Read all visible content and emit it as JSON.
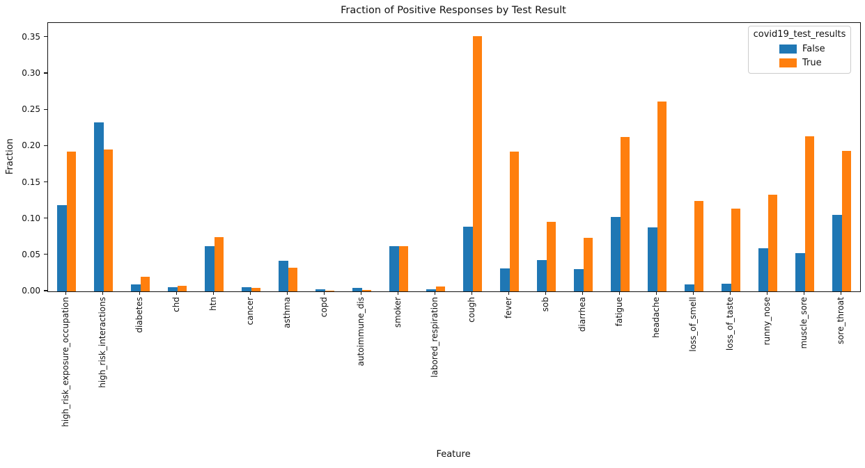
{
  "chart_data": {
    "type": "bar",
    "title": "Fraction of Positive Responses by Test Result",
    "xlabel": "Feature",
    "ylabel": "Fraction",
    "ylim": [
      0,
      0.37
    ],
    "yticks": [
      0.0,
      0.05,
      0.1,
      0.15,
      0.2,
      0.25,
      0.3,
      0.35
    ],
    "grid": false,
    "legend_title": "covid19_test_results",
    "legend_position": "upper right",
    "categories": [
      "high_risk_exposure_occupation",
      "high_risk_interactions",
      "diabetes",
      "chd",
      "htn",
      "cancer",
      "asthma",
      "copd",
      "autoimmune_dis",
      "smoker",
      "labored_respiration",
      "cough",
      "fever",
      "sob",
      "diarrhea",
      "fatigue",
      "headache",
      "loss_of_smell",
      "loss_of_taste",
      "runny_nose",
      "muscle_sore",
      "sore_throat"
    ],
    "series": [
      {
        "name": "False",
        "color": "#1f77b4",
        "values": [
          0.119,
          0.233,
          0.01,
          0.006,
          0.062,
          0.006,
          0.042,
          0.003,
          0.005,
          0.062,
          0.003,
          0.089,
          0.032,
          0.043,
          0.031,
          0.103,
          0.088,
          0.01,
          0.011,
          0.059,
          0.053,
          0.105
        ]
      },
      {
        "name": "True",
        "color": "#ff7f0e",
        "values": [
          0.193,
          0.196,
          0.02,
          0.008,
          0.075,
          0.005,
          0.033,
          0.0005,
          0.002,
          0.062,
          0.007,
          0.352,
          0.193,
          0.096,
          0.074,
          0.213,
          0.262,
          0.125,
          0.114,
          0.133,
          0.214,
          0.194
        ]
      }
    ]
  }
}
